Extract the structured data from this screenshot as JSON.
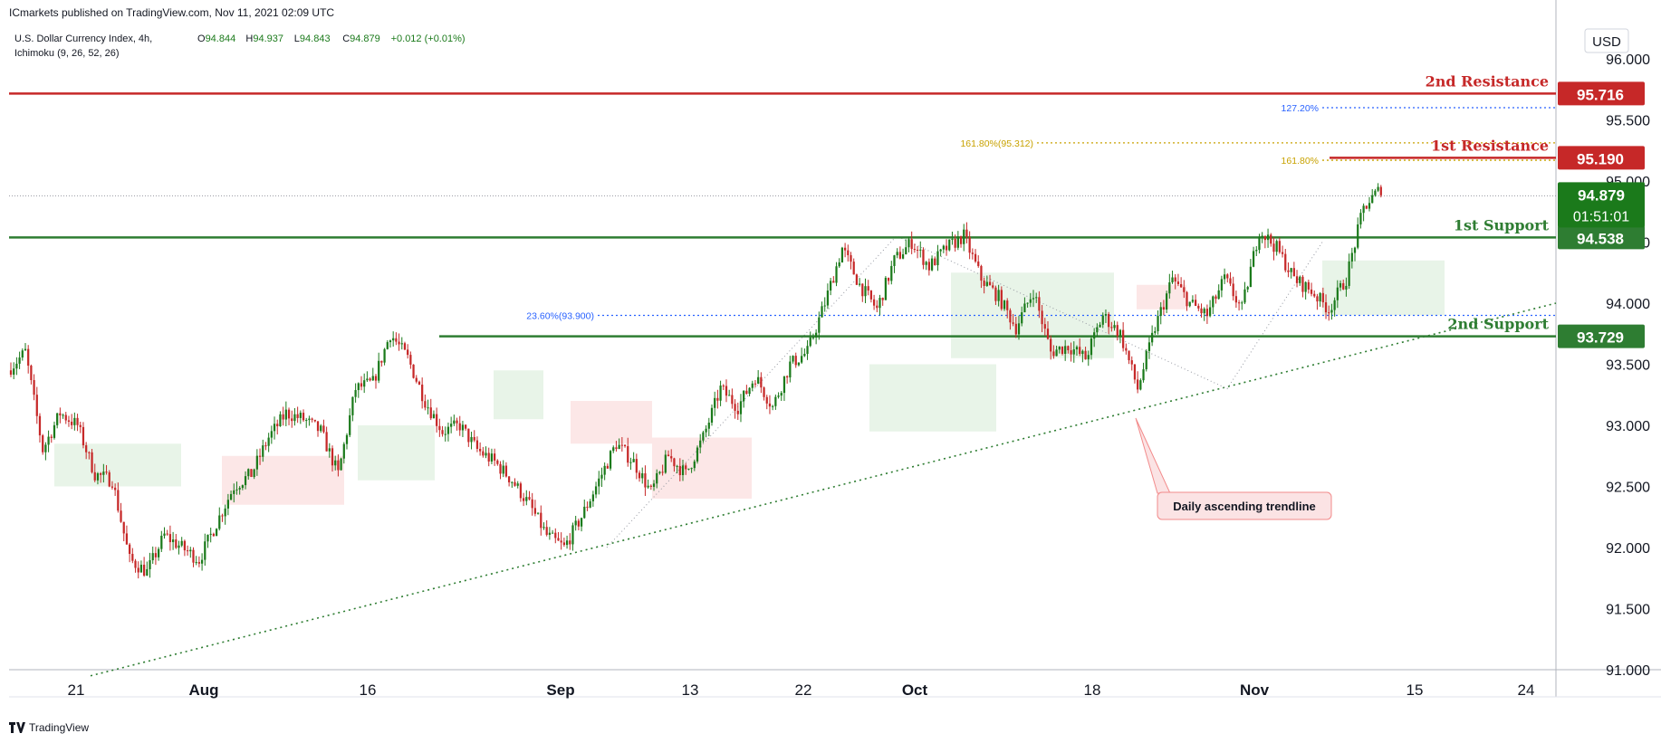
{
  "header": {
    "published": "ICmarkets published on TradingView.com, Nov 11, 2021 02:09 UTC"
  },
  "footer": {
    "brand": "TradingView"
  },
  "colors": {
    "up": "#1b7a1b",
    "down": "#c62828",
    "resistance": "#c62828",
    "support": "#2e7d32",
    "fib_blue": "#2962ff",
    "fib_gold": "#c8a200",
    "trendline": "#2e7d32",
    "cloud_green": "#e6f3e6",
    "cloud_red": "#fce4e4",
    "axis_text": "#131722"
  },
  "chart_data": {
    "type": "candlestick",
    "symbol_line1": "U.S. Dollar Currency Index, 4h,",
    "symbol_line2": "Ichimoku (9, 26, 52, 26)",
    "ohlc_text": [
      {
        "label": "O",
        "value": "94.844"
      },
      {
        "label": "H",
        "value": "94.937"
      },
      {
        "label": "L",
        "value": "94.843"
      },
      {
        "label": "C",
        "value": "94.879"
      },
      {
        "label": "",
        "value": "+0.012 (+0.01%)"
      }
    ],
    "currency": "USD",
    "ylim": [
      91.0,
      96.2
    ],
    "y_ticks": [
      "96.000",
      "95.500",
      "95.000",
      "94.500",
      "94.000",
      "93.500",
      "93.000",
      "92.500",
      "92.000",
      "91.500",
      "91.000"
    ],
    "x_ticks": [
      "21",
      "Aug",
      "16",
      "Sep",
      "13",
      "22",
      "Oct",
      "18",
      "Nov",
      "15",
      "24"
    ],
    "levels": [
      {
        "name": "2nd Resistance",
        "value": 95.716,
        "label": "95.716",
        "kind": "resistance"
      },
      {
        "name": "1st Resistance",
        "value": 95.19,
        "label": "95.190",
        "kind": "resistance"
      },
      {
        "name": "1st Support",
        "value": 94.538,
        "label": "94.538",
        "kind": "support"
      },
      {
        "name": "2nd Support",
        "value": 93.729,
        "label": "93.729",
        "kind": "support"
      }
    ],
    "fib_levels": [
      {
        "label": "127.20%",
        "value": 95.6,
        "color": "blue"
      },
      {
        "label": "161.80%(95.312)",
        "value": 95.312,
        "color": "gold"
      },
      {
        "label": "161.80%",
        "value": 95.17,
        "color": "gold"
      },
      {
        "label": "23.60%(93.900)",
        "value": 93.9,
        "color": "blue"
      }
    ],
    "current_price": {
      "value": 94.879,
      "label": "94.879",
      "countdown": "01:51:01"
    },
    "annotation": "Daily ascending trendline",
    "trendline": {
      "from": 90.95,
      "to": 94.0
    },
    "path": [
      93.45,
      93.6,
      92.8,
      93.1,
      93.0,
      92.6,
      92.55,
      91.9,
      91.8,
      92.1,
      92.0,
      91.9,
      92.2,
      92.5,
      92.6,
      92.9,
      93.1,
      93.05,
      92.95,
      92.6,
      93.3,
      93.35,
      93.75,
      93.55,
      93.2,
      92.95,
      93.0,
      92.8,
      92.7,
      92.55,
      92.35,
      92.1,
      92.0,
      92.25,
      92.55,
      92.85,
      92.7,
      92.45,
      92.75,
      92.6,
      92.9,
      93.3,
      93.15,
      93.4,
      93.15,
      93.5,
      93.6,
      94.0,
      94.45,
      94.15,
      93.95,
      94.35,
      94.5,
      94.3,
      94.45,
      94.55,
      94.2,
      94.05,
      93.8,
      94.1,
      93.6,
      93.65,
      93.55,
      93.9,
      93.75,
      93.3,
      93.8,
      94.2,
      94.0,
      93.9,
      94.2,
      93.95,
      94.6,
      94.45,
      94.2,
      94.1,
      93.95,
      94.2,
      94.78,
      94.94
    ]
  }
}
